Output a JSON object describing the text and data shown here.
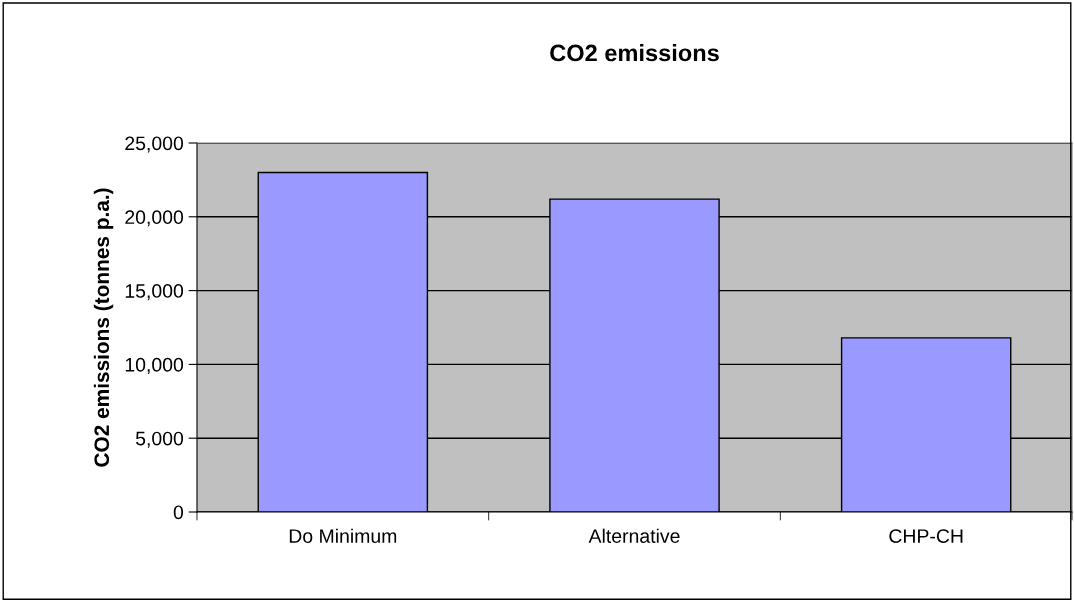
{
  "chart_data": {
    "type": "bar",
    "title": "CO2 emissions",
    "ylabel": "CO2 emissions (tonnes p.a.)",
    "categories": [
      "Do Minimum",
      "Alternative",
      "CHP-CH"
    ],
    "values": [
      23000,
      21200,
      11800
    ],
    "color": "#9999ff",
    "ylim": [
      0,
      25000
    ],
    "yticks": [
      {
        "value": 0,
        "label": "0"
      },
      {
        "value": 5000,
        "label": "5,000"
      },
      {
        "value": 10000,
        "label": "10,000"
      },
      {
        "value": 15000,
        "label": "15,000"
      },
      {
        "value": 20000,
        "label": "20,000"
      },
      {
        "value": 25000,
        "label": "25,000"
      }
    ],
    "grid": "y",
    "legend": false
  }
}
